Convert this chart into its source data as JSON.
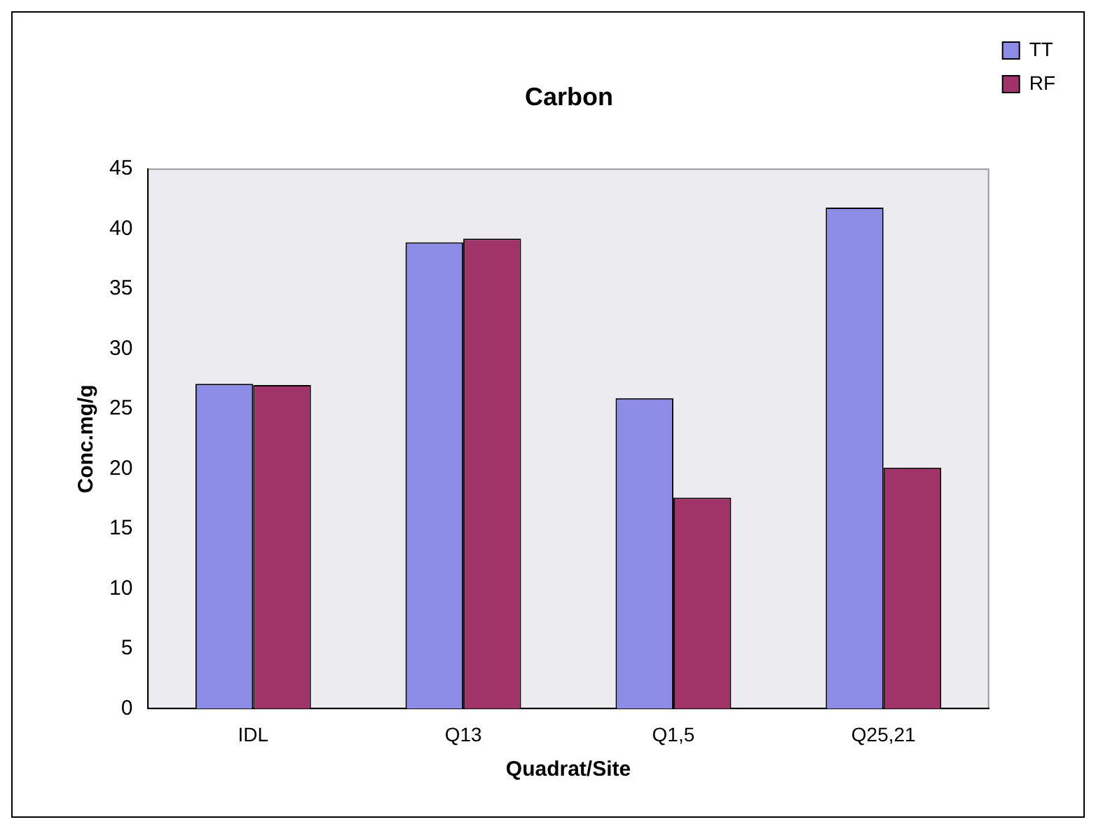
{
  "chart_data": {
    "type": "bar",
    "title": "Carbon",
    "xlabel": "Quadrat/Site",
    "ylabel": "Conc.mg/g",
    "categories": [
      "IDL",
      "Q13",
      "Q1,5",
      "Q25,21"
    ],
    "series": [
      {
        "name": "TT",
        "color": "#8c8ce6",
        "values": [
          27.1,
          38.9,
          25.9,
          41.8
        ]
      },
      {
        "name": "RF",
        "color": "#a03468",
        "values": [
          27,
          39.2,
          17.6,
          20.1
        ]
      }
    ],
    "ylim": [
      0,
      45
    ],
    "yticks": [
      0,
      5,
      10,
      15,
      20,
      25,
      30,
      35,
      40,
      45
    ],
    "grid": false,
    "legend": "top right"
  }
}
